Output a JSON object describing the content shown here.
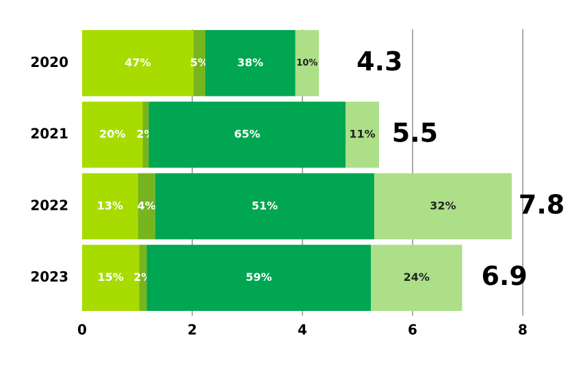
{
  "chart_data": {
    "type": "stacked-bar-percent",
    "categories": [
      "2020",
      "2021",
      "2022",
      "2023"
    ],
    "totals": [
      4.3,
      5.5,
      7.8,
      6.9
    ],
    "series": [
      {
        "color": "#a8dc00",
        "values": [
          47,
          20,
          13,
          15
        ],
        "value_labels": [
          "47%",
          "20%",
          "13%",
          "15%"
        ]
      },
      {
        "color": "#76b51e",
        "values": [
          5,
          2,
          4,
          2
        ],
        "value_labels": [
          "5%",
          "2%",
          "4%",
          "2%"
        ]
      },
      {
        "color": "#00a651",
        "values": [
          38,
          65,
          51,
          59
        ],
        "value_labels": [
          "38%",
          "65%",
          "51%",
          "59%"
        ]
      },
      {
        "color": "#acdf88",
        "values": [
          10,
          11,
          32,
          24
        ],
        "value_labels": [
          "10%",
          "11%",
          "32%",
          "24%"
        ]
      }
    ],
    "xlim": [
      0,
      8
    ],
    "xticks": [
      0,
      2,
      4,
      6,
      8
    ],
    "grid": true
  }
}
